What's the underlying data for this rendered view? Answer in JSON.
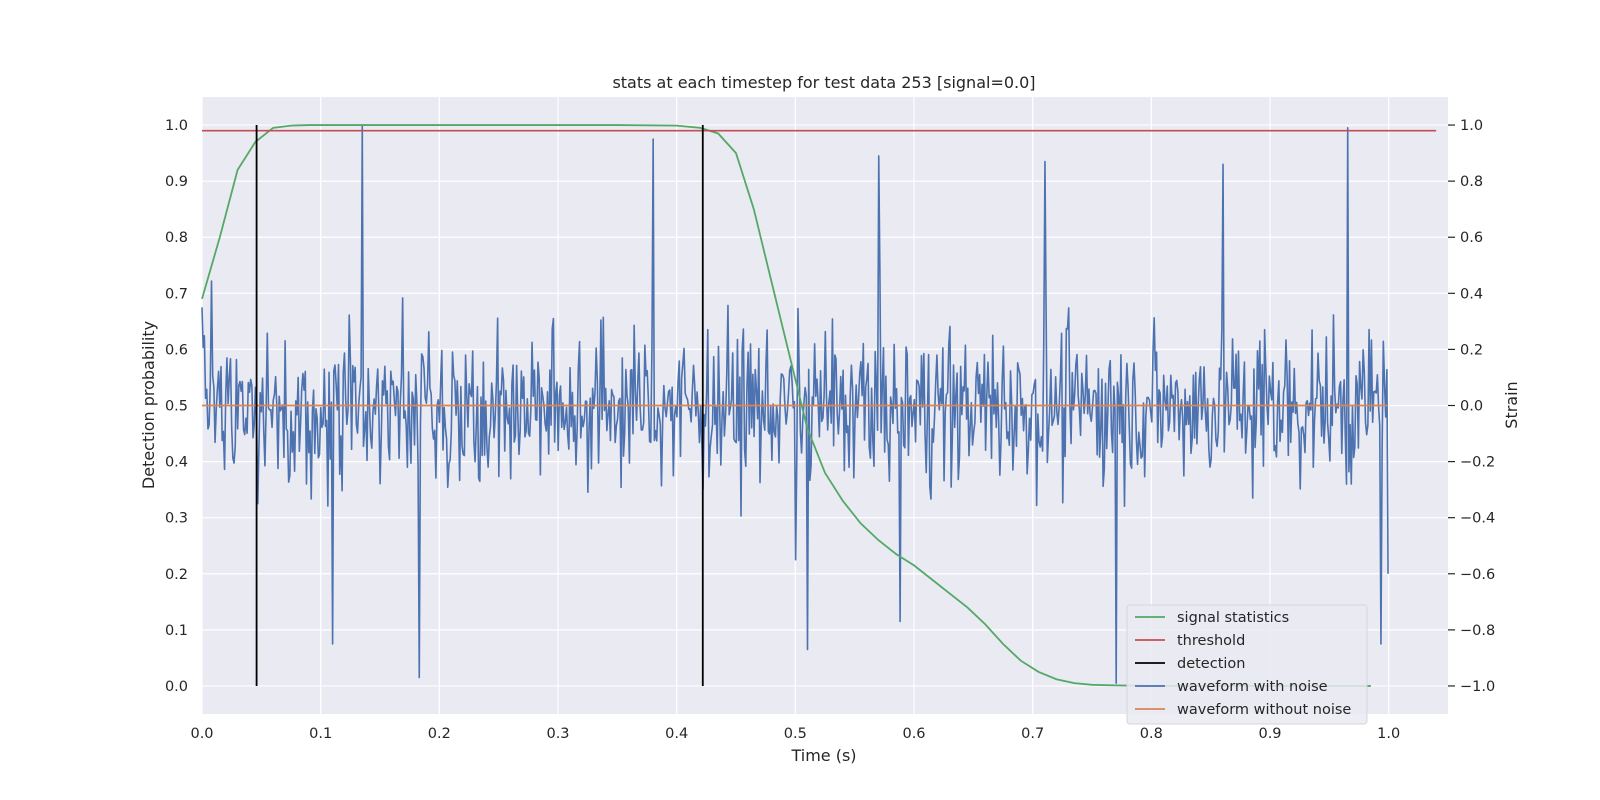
{
  "chart_data": {
    "type": "line",
    "title": "stats at each timestep for test data 253 [signal=0.0]",
    "xlabel": "Time (s)",
    "ylabel_left": "Detection probability",
    "ylabel_right": "Strain",
    "xlim": [
      0.0,
      1.05
    ],
    "ylim_left": [
      -0.05,
      1.05
    ],
    "ylim_right": [
      -1.1,
      1.1
    ],
    "x_ticks": [
      "0.0",
      "0.1",
      "0.2",
      "0.3",
      "0.4",
      "0.5",
      "0.6",
      "0.7",
      "0.8",
      "0.9",
      "1.0"
    ],
    "y_ticks_left": [
      "0.0",
      "0.1",
      "0.2",
      "0.3",
      "0.4",
      "0.5",
      "0.6",
      "0.7",
      "0.8",
      "0.9",
      "1.0"
    ],
    "y_ticks_right": [
      "−1.0",
      "−0.8",
      "−0.6",
      "−0.4",
      "−0.2",
      "0.0",
      "0.2",
      "0.4",
      "0.6",
      "0.8",
      "1.0"
    ],
    "grid": true,
    "legend_position": "lower-right",
    "colors": {
      "signal_statistics": "#55a868",
      "threshold": "#c44e52",
      "detection": "#000000",
      "waveform_with_noise": "#4c72b0",
      "waveform_without_noise": "#dd8452",
      "background": "#eaeaf2",
      "grid": "#ffffff"
    },
    "series": [
      {
        "name": "signal statistics",
        "axis": "left",
        "x": [
          0.0,
          0.015,
          0.03,
          0.045,
          0.06,
          0.075,
          0.09,
          0.2,
          0.3,
          0.35,
          0.4,
          0.42,
          0.435,
          0.45,
          0.465,
          0.48,
          0.495,
          0.51,
          0.525,
          0.54,
          0.555,
          0.57,
          0.585,
          0.6,
          0.615,
          0.63,
          0.645,
          0.66,
          0.675,
          0.69,
          0.705,
          0.72,
          0.735,
          0.75,
          0.77,
          0.8,
          0.9,
          0.985
        ],
        "values": [
          0.69,
          0.8,
          0.92,
          0.97,
          0.995,
          0.999,
          1.0,
          1.0,
          1.0,
          1.0,
          0.999,
          0.995,
          0.985,
          0.95,
          0.85,
          0.72,
          0.59,
          0.46,
          0.38,
          0.33,
          0.29,
          0.26,
          0.235,
          0.215,
          0.19,
          0.165,
          0.14,
          0.11,
          0.075,
          0.045,
          0.025,
          0.012,
          0.005,
          0.002,
          0.001,
          0.0,
          0.0,
          0.0
        ]
      },
      {
        "name": "threshold",
        "axis": "left",
        "x": [
          0.0,
          1.04
        ],
        "values": [
          0.99,
          0.99
        ]
      },
      {
        "name": "detection",
        "axis": "left",
        "detection_times": [
          0.046,
          0.422
        ],
        "y_range": [
          0.0,
          1.0
        ]
      },
      {
        "name": "waveform with noise",
        "axis": "right",
        "x_range": [
          0.0,
          0.9995
        ],
        "n_points": 1000,
        "y_range_observed": [
          -1.0,
          1.0
        ],
        "y_anchor_points": [
          [
            0.0,
            0.35
          ],
          [
            0.047,
            -0.35
          ],
          [
            0.11,
            -0.85
          ],
          [
            0.135,
            1.0
          ],
          [
            0.183,
            -0.97
          ],
          [
            0.38,
            0.95
          ],
          [
            0.42,
            0.0
          ],
          [
            0.5,
            -0.55
          ],
          [
            0.51,
            -0.87
          ],
          [
            0.57,
            0.89
          ],
          [
            0.588,
            -0.77
          ],
          [
            0.71,
            0.87
          ],
          [
            0.77,
            -0.99
          ],
          [
            0.86,
            0.86
          ],
          [
            0.965,
            0.99
          ],
          [
            0.993,
            -0.85
          ],
          [
            0.9995,
            -0.6
          ]
        ]
      },
      {
        "name": "waveform without noise",
        "axis": "right",
        "x": [
          0.0,
          0.9995
        ],
        "values": [
          0.0,
          0.0
        ]
      }
    ]
  }
}
